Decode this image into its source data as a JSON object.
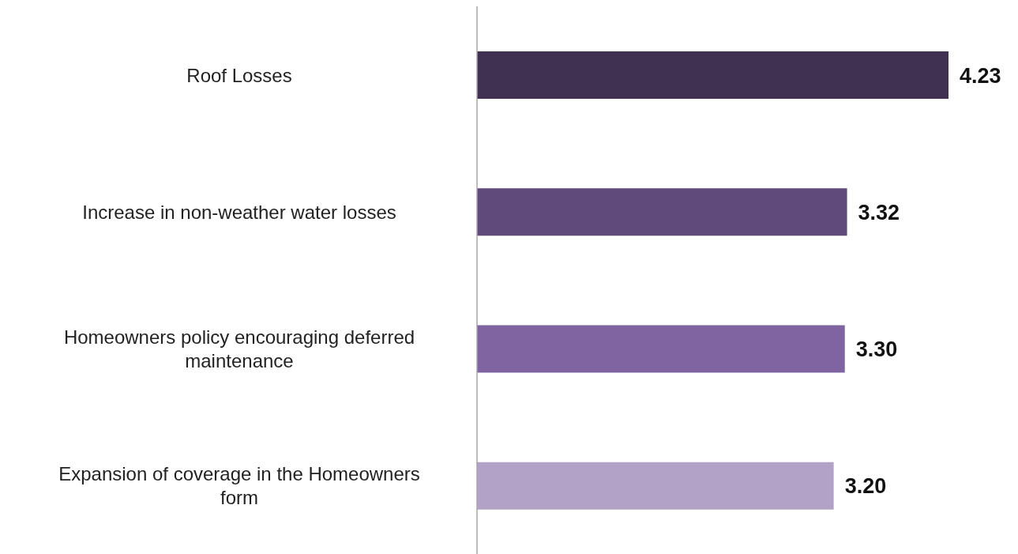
{
  "chart_data": {
    "type": "bar",
    "orientation": "horizontal",
    "value_labels": [
      "4.23",
      "3.32",
      "3.30",
      "3.20"
    ],
    "grid": false,
    "legend": false,
    "categories": [
      "Roof Losses",
      "Increase in non-weather water losses",
      "Homeowners policy encouraging deferred maintenance",
      "Expansion of coverage in the Homeowners form"
    ],
    "values": [
      4.23,
      3.32,
      3.3,
      3.2
    ],
    "colors": [
      "#403152",
      "#604a7b",
      "#8064a2",
      "#b3a2c7"
    ]
  }
}
